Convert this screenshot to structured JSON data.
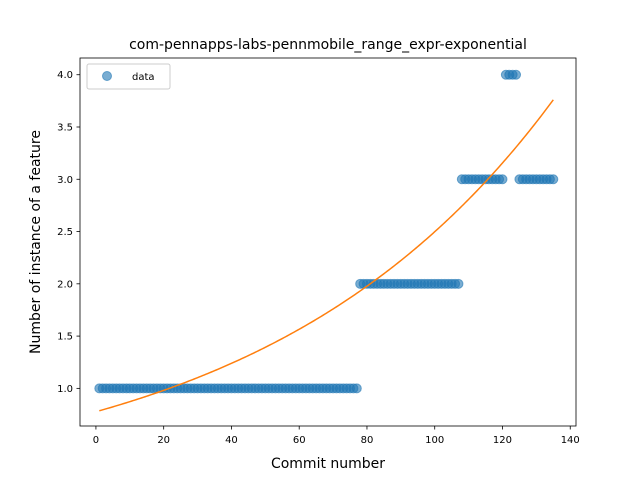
{
  "chart_data": {
    "type": "scatter",
    "title": "com-pennapps-labs-pennmobile_range_expr-exponential",
    "xlabel": "Commit number",
    "ylabel": "Number of instance of a feature",
    "xlim": [
      -4.7,
      141.7
    ],
    "ylim": [
      0.64,
      4.16
    ],
    "xticks": [
      0,
      20,
      40,
      60,
      80,
      100,
      120,
      140
    ],
    "yticks": [
      1.0,
      1.5,
      2.0,
      2.5,
      3.0,
      3.5,
      4.0
    ],
    "xtick_labels": [
      "0",
      "20",
      "40",
      "60",
      "80",
      "100",
      "120",
      "140"
    ],
    "ytick_labels": [
      "1.0",
      "1.5",
      "2.0",
      "2.5",
      "3.0",
      "3.5",
      "4.0"
    ],
    "legend_position": "upper-left",
    "grid": false,
    "series": [
      {
        "name": "data",
        "kind": "scatter",
        "color": "#1f77b4",
        "segments": [
          {
            "x_from": 1,
            "x_to": 77,
            "y": 1
          },
          {
            "x_from": 78,
            "x_to": 107,
            "y": 2
          },
          {
            "x_from": 108,
            "x_to": 120,
            "y": 3
          },
          {
            "x_from": 121,
            "x_to": 124,
            "y": 4
          },
          {
            "x_from": 125,
            "x_to": 135,
            "y": 3
          }
        ]
      },
      {
        "kind": "line",
        "color": "#ff7f0e",
        "model": "exponential",
        "a": 0.7765,
        "b": 0.011685,
        "x_from": 1,
        "x_to": 135
      }
    ]
  }
}
